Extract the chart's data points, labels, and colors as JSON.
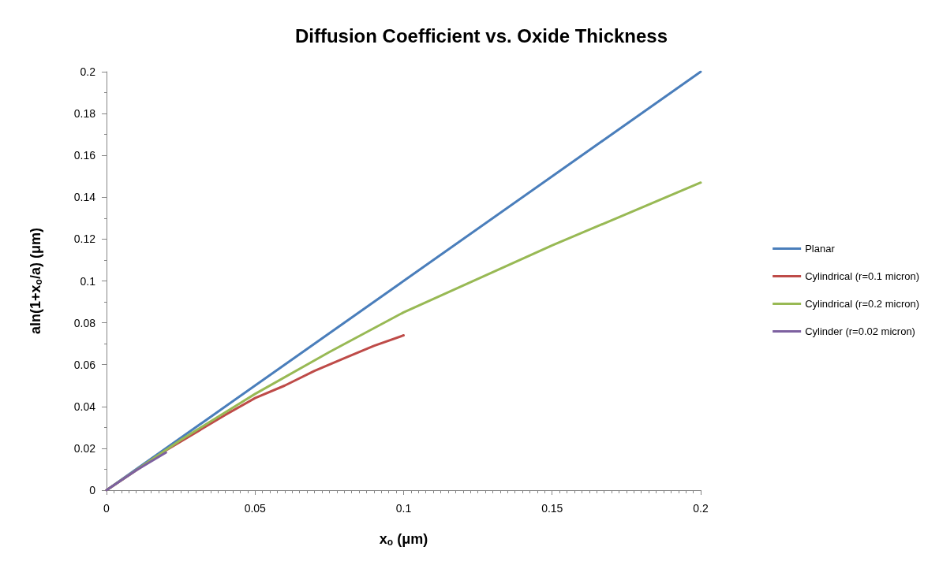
{
  "chart_data": {
    "type": "line",
    "title": "Diffusion Coefficient vs. Oxide Thickness",
    "xlabel": "x$_{o}$ (μm)",
    "ylabel": "aln(1+x$_{o}$/a) (μm)",
    "xlim": [
      0,
      0.2
    ],
    "xticks": [
      0,
      0.05,
      0.1,
      0.15,
      0.2
    ],
    "ylim": [
      0,
      0.2
    ],
    "yticks": [
      0,
      0.02,
      0.04,
      0.06,
      0.08,
      0.1,
      0.12,
      0.14,
      0.16,
      0.18,
      0.2
    ],
    "grid": false,
    "legend": "right",
    "marker": "none",
    "line_style": "solid",
    "series": [
      {
        "name": "Planar",
        "color": "#4a7ebb",
        "x": [
          0,
          0.05,
          0.1,
          0.15,
          0.2
        ],
        "values": [
          0,
          0.05,
          0.1,
          0.15,
          0.2
        ]
      },
      {
        "name": "Cylindrical (r=0.1 micron)",
        "color": "#be4b48",
        "x": [
          0,
          0.02,
          0.04,
          0.05,
          0.06,
          0.07,
          0.08,
          0.09,
          0.1
        ],
        "values": [
          0,
          0.019,
          0.036,
          0.044,
          0.05,
          0.057,
          0.063,
          0.069,
          0.074
        ]
      },
      {
        "name": "Cylindrical (r=0.2 micron)",
        "color": "#98b954",
        "x": [
          0,
          0.025,
          0.05,
          0.075,
          0.1,
          0.125,
          0.15,
          0.175,
          0.2
        ],
        "values": [
          0,
          0.024,
          0.046,
          0.066,
          0.085,
          0.101,
          0.117,
          0.132,
          0.147
        ]
      },
      {
        "name": "Cylinder (r=0.02 micron)",
        "color": "#7d60a0",
        "x": [
          0,
          0.01,
          0.02
        ],
        "values": [
          0,
          0.0095,
          0.018
        ]
      }
    ]
  }
}
